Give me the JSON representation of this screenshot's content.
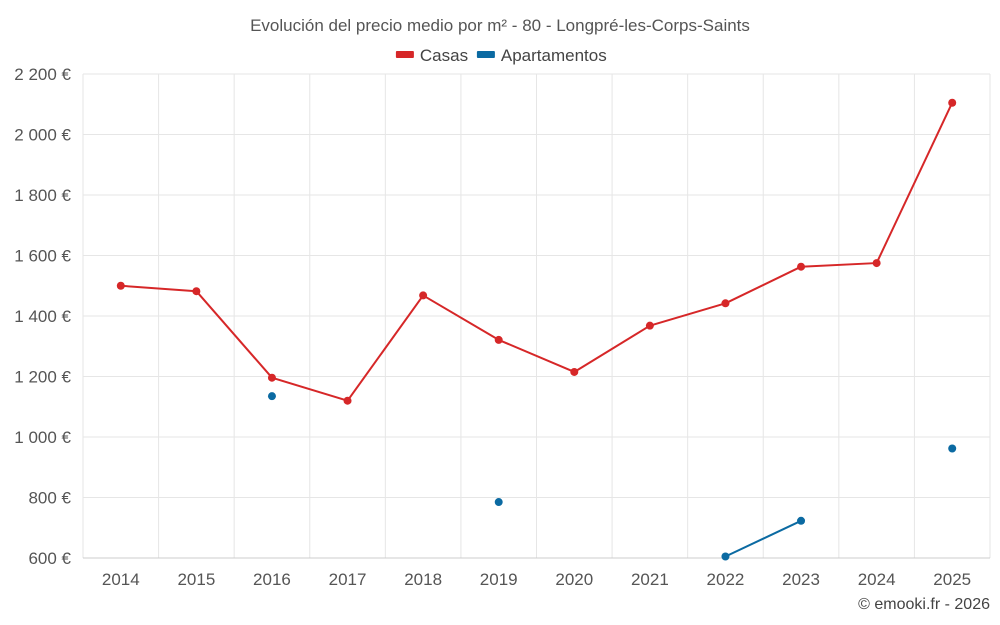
{
  "chart_data": {
    "type": "line",
    "title": "Evolución del precio medio por m² - 80 - Longpré-les-Corps-Saints",
    "categories": [
      "2014",
      "2015",
      "2016",
      "2017",
      "2018",
      "2019",
      "2020",
      "2021",
      "2022",
      "2023",
      "2024",
      "2025"
    ],
    "ylim": [
      600,
      2200
    ],
    "yticks": [
      600,
      800,
      1000,
      1200,
      1400,
      1600,
      1800,
      2000,
      2200
    ],
    "ytick_labels": [
      "600 €",
      "800 €",
      "1 000 €",
      "1 200 €",
      "1 400 €",
      "1 600 €",
      "1 800 €",
      "2 000 €",
      "2 200 €"
    ],
    "grid": true,
    "legend_position": "top-center",
    "series": [
      {
        "name": "Casas",
        "color": "#d62728",
        "values": [
          1500,
          1482,
          1196,
          1120,
          1468,
          1321,
          1215,
          1368,
          1442,
          1563,
          1575,
          2105
        ]
      },
      {
        "name": "Apartamentos",
        "color": "#0b6aa2",
        "values": [
          null,
          null,
          1135,
          null,
          null,
          785,
          null,
          null,
          605,
          723,
          null,
          962
        ]
      }
    ]
  },
  "credit": "© emooki.fr - 2026"
}
